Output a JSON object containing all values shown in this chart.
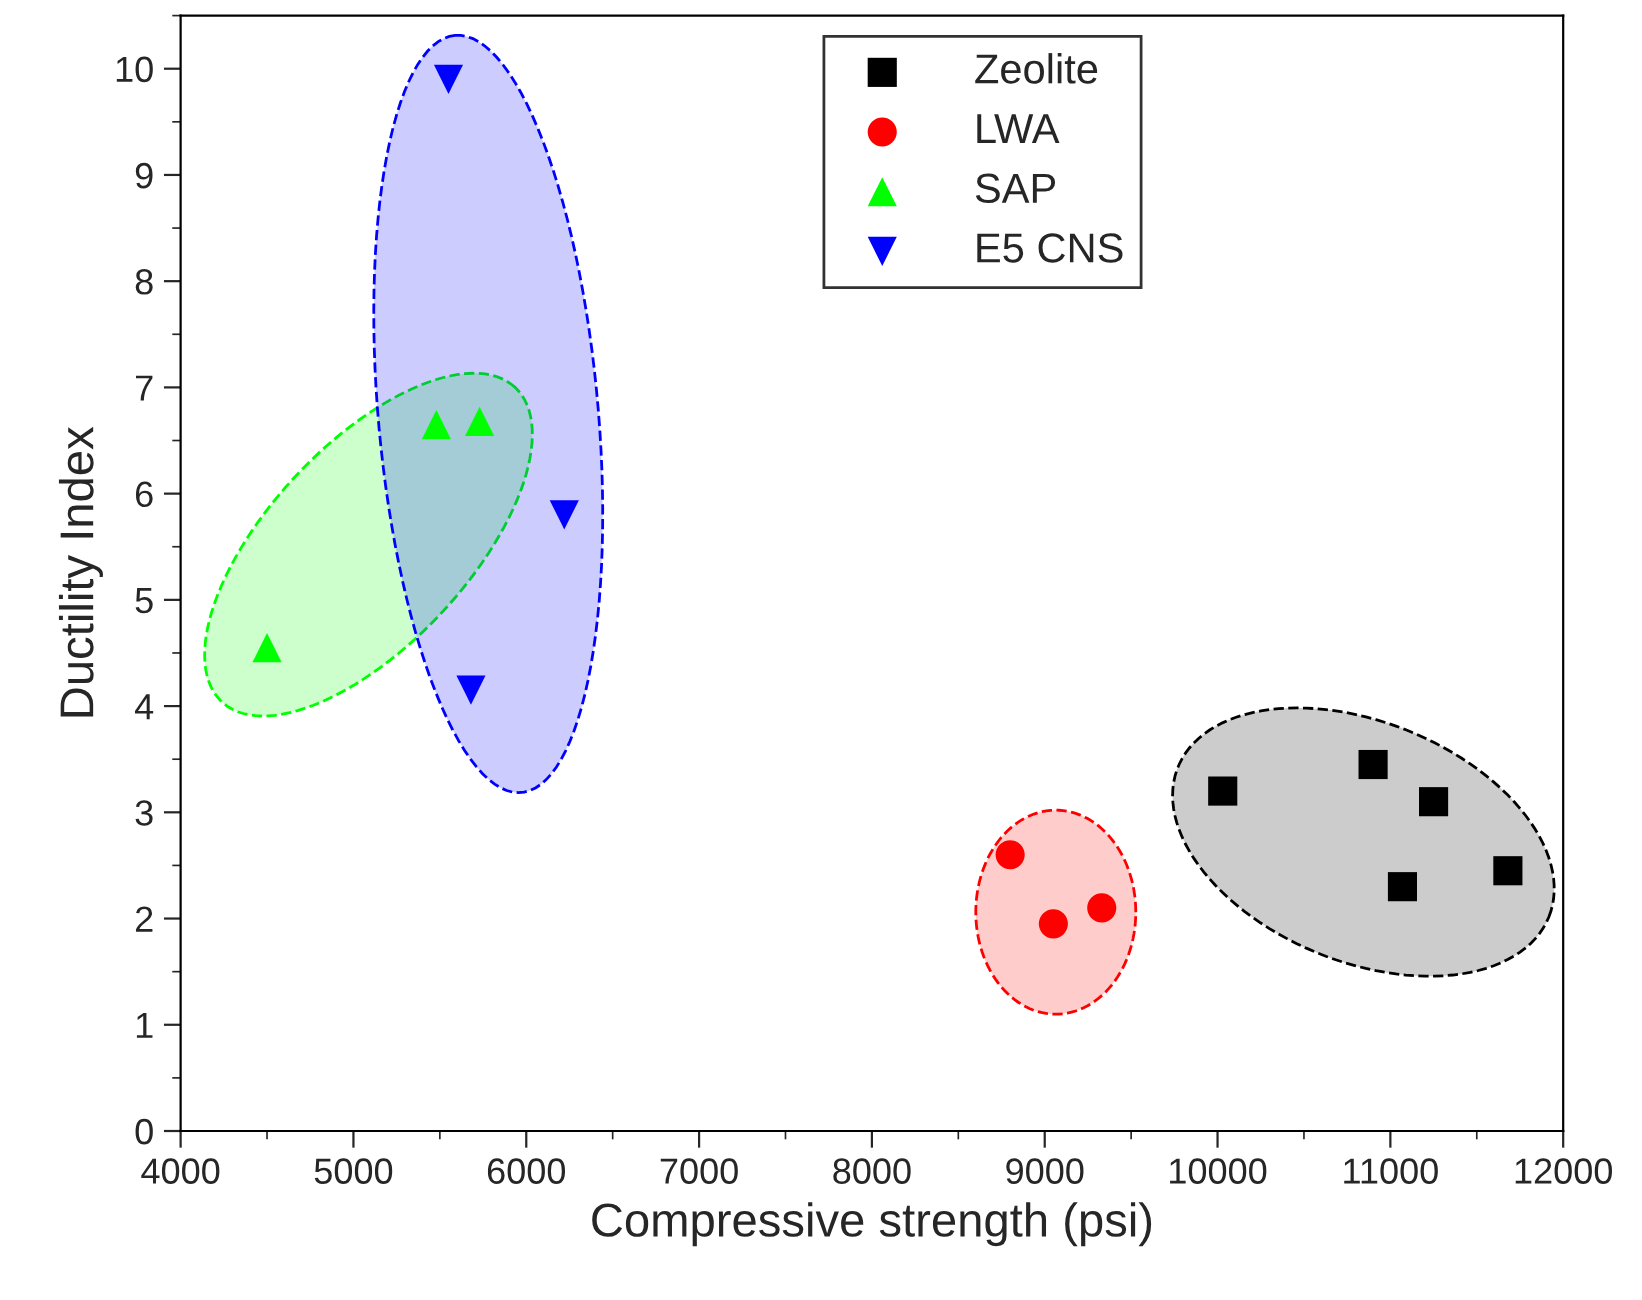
{
  "chart_data": {
    "type": "scatter",
    "xlabel": "Compressive strength (psi)",
    "ylabel": "Ductility Index",
    "xlim": [
      4000,
      12000
    ],
    "xticks": [
      4000,
      5000,
      6000,
      7000,
      8000,
      9000,
      10000,
      11000,
      12000
    ],
    "ylim": [
      0,
      10.5
    ],
    "yticks": [
      0,
      1,
      2,
      3,
      4,
      5,
      6,
      7,
      8,
      9,
      10
    ],
    "grid": false,
    "legend": "top",
    "series": [
      {
        "name": "Zeolite",
        "color": "#000000",
        "marker": "square",
        "x": [
          10030,
          10900,
          11250,
          11070,
          11680
        ],
        "values": [
          3.2,
          3.45,
          3.1,
          2.3,
          2.45
        ]
      },
      {
        "name": "LWA",
        "color": "#ff0000",
        "marker": "circle",
        "x": [
          8800,
          9050,
          9330
        ],
        "values": [
          2.6,
          1.95,
          2.1
        ]
      },
      {
        "name": "SAP",
        "color": "#00ff00",
        "marker": "triangle",
        "x": [
          4500,
          5480,
          5730
        ],
        "values": [
          4.55,
          6.65,
          6.68
        ]
      },
      {
        "name": "E5 CNS",
        "color": "#0000ff",
        "marker": "triangle_down",
        "x": [
          5550,
          6220,
          5680
        ],
        "values": [
          9.9,
          5.8,
          4.15
        ]
      }
    ]
  }
}
